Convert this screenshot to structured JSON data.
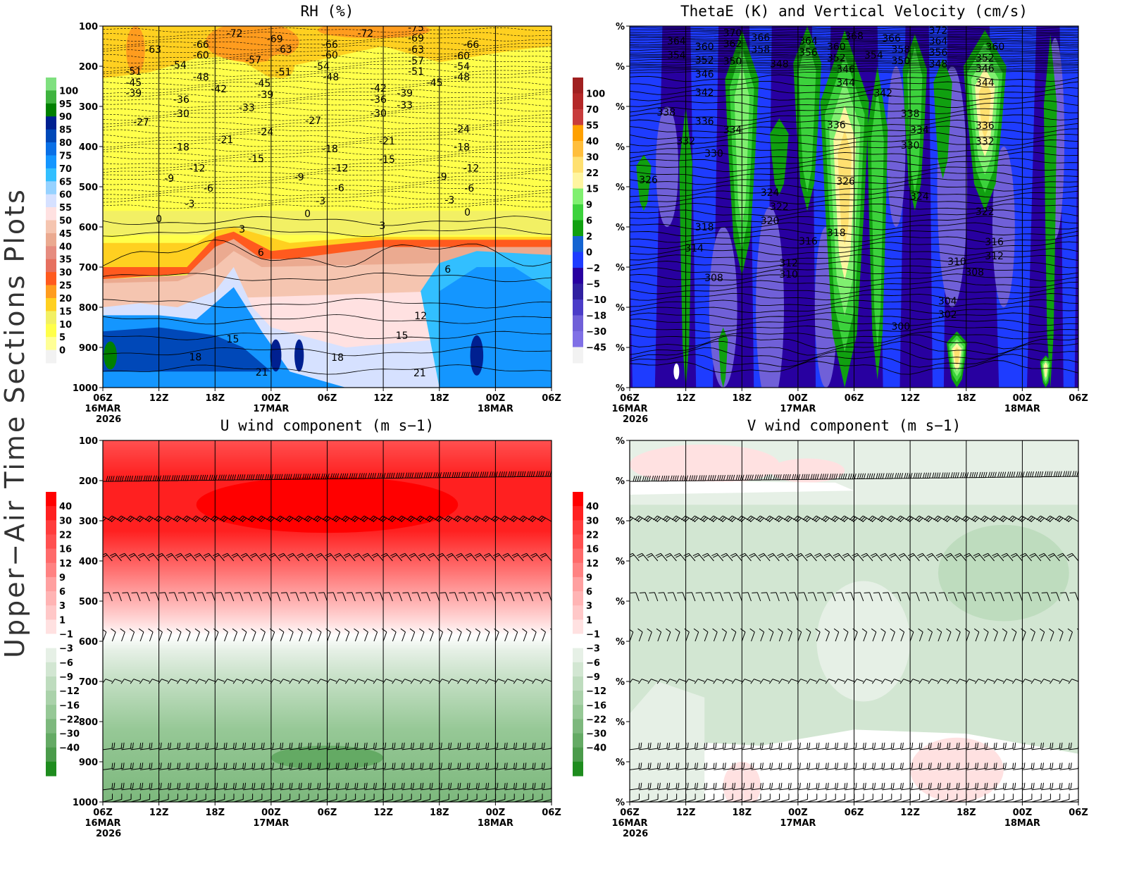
{
  "side_title": "Upper−Air Time Sections Plots",
  "x_axis": {
    "tick_labels": [
      "06Z",
      "12Z",
      "18Z",
      "00Z",
      "06Z",
      "12Z",
      "18Z",
      "00Z",
      "06Z"
    ],
    "date_labels": [
      {
        "tick": 0,
        "text": "16MAR"
      },
      {
        "tick": 3,
        "text": "17MAR"
      },
      {
        "tick": 7,
        "text": "18MAR"
      }
    ],
    "year_label": "2026"
  },
  "chart_data": [
    {
      "type": "heatmap",
      "title": "RH (%)",
      "ylim": [
        1000,
        100
      ],
      "x_range_hours": [
        0,
        48
      ],
      "ytick_labels": [
        "100",
        "200",
        "300",
        "400",
        "500",
        "600",
        "700",
        "800",
        "900",
        "1000"
      ],
      "colorbar": {
        "labels": [
          "100",
          "95",
          "90",
          "85",
          "80",
          "75",
          "70",
          "65",
          "60",
          "55",
          "50",
          "45",
          "40",
          "35",
          "30",
          "25",
          "20",
          "15",
          "10",
          "5",
          "0"
        ],
        "colors": [
          "#7fe07f",
          "#3fb33f",
          "#008000",
          "#002090",
          "#0048b8",
          "#0a70e6",
          "#1496ff",
          "#32bfff",
          "#96d2ff",
          "#d6e1ff",
          "#ffe1e1",
          "#f5c5b0",
          "#ebaa90",
          "#e68c7f",
          "#e6705f",
          "#ff5a1e",
          "#ff9c1e",
          "#ffd020",
          "#f2f064",
          "#ffff4a",
          "#ffff96",
          "#f2f2f2"
        ]
      },
      "contour_labels": [
        {
          "h": 14.1,
          "p": 119,
          "text": "-72"
        },
        {
          "h": 18.4,
          "p": 133,
          "text": "-69"
        },
        {
          "h": 28.1,
          "p": 119,
          "text": "-72"
        },
        {
          "h": 33.5,
          "p": 105,
          "text": "-75"
        },
        {
          "h": 33.5,
          "p": 132,
          "text": "-69"
        },
        {
          "h": 5.4,
          "p": 160,
          "text": "-63"
        },
        {
          "h": 10.5,
          "p": 147,
          "text": "-66"
        },
        {
          "h": 10.5,
          "p": 174,
          "text": "-60"
        },
        {
          "h": 19.4,
          "p": 160,
          "text": "-63"
        },
        {
          "h": 24.3,
          "p": 147,
          "text": "-66"
        },
        {
          "h": 24.3,
          "p": 174,
          "text": "-60"
        },
        {
          "h": 33.5,
          "p": 160,
          "text": "-63"
        },
        {
          "h": 39.4,
          "p": 147,
          "text": "-66"
        },
        {
          "h": 38.4,
          "p": 175,
          "text": "-60"
        },
        {
          "h": 16.1,
          "p": 186,
          "text": "-57"
        },
        {
          "h": 33.5,
          "p": 188,
          "text": "-57"
        },
        {
          "h": 8.1,
          "p": 198,
          "text": "-54"
        },
        {
          "h": 23.4,
          "p": 202,
          "text": "-54"
        },
        {
          "h": 38.4,
          "p": 202,
          "text": "-54"
        },
        {
          "h": 3.3,
          "p": 214,
          "text": "-51"
        },
        {
          "h": 19.3,
          "p": 216,
          "text": "-51"
        },
        {
          "h": 33.5,
          "p": 214,
          "text": "-51"
        },
        {
          "h": 10.5,
          "p": 228,
          "text": "-48"
        },
        {
          "h": 24.4,
          "p": 228,
          "text": "-48"
        },
        {
          "h": 38.4,
          "p": 228,
          "text": "-48"
        },
        {
          "h": 3.3,
          "p": 242,
          "text": "-45"
        },
        {
          "h": 17.1,
          "p": 244,
          "text": "-45"
        },
        {
          "h": 35.5,
          "p": 242,
          "text": "-45"
        },
        {
          "h": 12.4,
          "p": 258,
          "text": "-42"
        },
        {
          "h": 29.5,
          "p": 256,
          "text": "-42"
        },
        {
          "h": 3.3,
          "p": 268,
          "text": "-39"
        },
        {
          "h": 17.4,
          "p": 272,
          "text": "-39"
        },
        {
          "h": 32.3,
          "p": 268,
          "text": "-39"
        },
        {
          "h": 8.4,
          "p": 284,
          "text": "-36"
        },
        {
          "h": 29.5,
          "p": 284,
          "text": "-36"
        },
        {
          "h": 15.4,
          "p": 304,
          "text": "-33"
        },
        {
          "h": 32.3,
          "p": 298,
          "text": "-33"
        },
        {
          "h": 8.4,
          "p": 319,
          "text": "-30"
        },
        {
          "h": 29.5,
          "p": 318,
          "text": "-30"
        },
        {
          "h": 4.1,
          "p": 340,
          "text": "-27"
        },
        {
          "h": 22.5,
          "p": 337,
          "text": "-27"
        },
        {
          "h": 17.4,
          "p": 365,
          "text": "-24"
        },
        {
          "h": 38.4,
          "p": 358,
          "text": "-24"
        },
        {
          "h": 13.1,
          "p": 384,
          "text": "-21"
        },
        {
          "h": 30.4,
          "p": 388,
          "text": "-21"
        },
        {
          "h": 8.4,
          "p": 403,
          "text": "-18"
        },
        {
          "h": 24.3,
          "p": 407,
          "text": "-18"
        },
        {
          "h": 38.4,
          "p": 403,
          "text": "-18"
        },
        {
          "h": 16.4,
          "p": 432,
          "text": "-15"
        },
        {
          "h": 30.4,
          "p": 433,
          "text": "-15"
        },
        {
          "h": 10.1,
          "p": 455,
          "text": "-12"
        },
        {
          "h": 25.4,
          "p": 455,
          "text": "-12"
        },
        {
          "h": 39.4,
          "p": 455,
          "text": "-12"
        },
        {
          "h": 7.1,
          "p": 481,
          "text": "-9"
        },
        {
          "h": 21.0,
          "p": 477,
          "text": "-9"
        },
        {
          "h": 36.3,
          "p": 476,
          "text": "-9"
        },
        {
          "h": 11.3,
          "p": 505,
          "text": "-6"
        },
        {
          "h": 25.3,
          "p": 504,
          "text": "-6"
        },
        {
          "h": 39.2,
          "p": 505,
          "text": "-6"
        },
        {
          "h": 9.3,
          "p": 544,
          "text": "-3"
        },
        {
          "h": 23.3,
          "p": 537,
          "text": "-3"
        },
        {
          "h": 37.1,
          "p": 534,
          "text": "-3"
        },
        {
          "h": 6.0,
          "p": 582,
          "text": "0"
        },
        {
          "h": 21.9,
          "p": 568,
          "text": "0"
        },
        {
          "h": 39.0,
          "p": 565,
          "text": "0"
        },
        {
          "h": 14.9,
          "p": 607,
          "text": "3"
        },
        {
          "h": 29.9,
          "p": 598,
          "text": "3"
        },
        {
          "h": 16.9,
          "p": 665,
          "text": "6"
        },
        {
          "h": 36.9,
          "p": 707,
          "text": "6"
        },
        {
          "h": 34.0,
          "p": 823,
          "text": "12"
        },
        {
          "h": 13.9,
          "p": 881,
          "text": "15"
        },
        {
          "h": 32.0,
          "p": 872,
          "text": "15"
        },
        {
          "h": 9.9,
          "p": 925,
          "text": "18"
        },
        {
          "h": 25.1,
          "p": 926,
          "text": "18"
        },
        {
          "h": 17.0,
          "p": 963,
          "text": "21"
        },
        {
          "h": 33.9,
          "p": 965,
          "text": "21"
        }
      ]
    },
    {
      "type": "heatmap",
      "title": "ThetaE (K) and Vertical Velocity (cm/s)",
      "ylim": [
        1000,
        100
      ],
      "x_range_hours": [
        0,
        48
      ],
      "ytick_labels": [
        "%",
        "%",
        "%",
        "%",
        "%",
        "%",
        "%",
        "%",
        "%",
        "%"
      ],
      "colorbar": {
        "labels": [
          "100",
          "70",
          "55",
          "40",
          "30",
          "22",
          "15",
          "9",
          "6",
          "2",
          "0",
          "−2",
          "−5",
          "−10",
          "−18",
          "−30",
          "−45"
        ],
        "colors": [
          "#a02020",
          "#b42828",
          "#c83c3c",
          "#ffa000",
          "#ffbe3c",
          "#ffe070",
          "#fff5a0",
          "#80f070",
          "#3cd23c",
          "#10a010",
          "#1464d2",
          "#1e3cff",
          "#2800a0",
          "#3020a0",
          "#4b3cc8",
          "#7060d8",
          "#8070e6",
          "#f2f2f2"
        ]
      },
      "contour_labels": [
        {
          "h": 11.0,
          "p": 118,
          "text": "370"
        },
        {
          "h": 14.0,
          "p": 130,
          "text": "366"
        },
        {
          "h": 5.0,
          "p": 139,
          "text": "364"
        },
        {
          "h": 8.0,
          "p": 153,
          "text": "360"
        },
        {
          "h": 11.0,
          "p": 146,
          "text": "362"
        },
        {
          "h": 14.0,
          "p": 160,
          "text": "358"
        },
        {
          "h": 5.0,
          "p": 174,
          "text": "354"
        },
        {
          "h": 8.0,
          "p": 186,
          "text": "352"
        },
        {
          "h": 11.0,
          "p": 189,
          "text": "350"
        },
        {
          "h": 16.0,
          "p": 196,
          "text": "348"
        },
        {
          "h": 19.1,
          "p": 139,
          "text": "364"
        },
        {
          "h": 19.1,
          "p": 167,
          "text": "356"
        },
        {
          "h": 24.0,
          "p": 126,
          "text": "368"
        },
        {
          "h": 22.1,
          "p": 153,
          "text": "360"
        },
        {
          "h": 22.1,
          "p": 181,
          "text": "352"
        },
        {
          "h": 23.1,
          "p": 209,
          "text": "346"
        },
        {
          "h": 26.1,
          "p": 174,
          "text": "354"
        },
        {
          "h": 28.0,
          "p": 132,
          "text": "366"
        },
        {
          "h": 29.0,
          "p": 160,
          "text": "358"
        },
        {
          "h": 29.0,
          "p": 188,
          "text": "350"
        },
        {
          "h": 33.0,
          "p": 112,
          "text": "372"
        },
        {
          "h": 33.0,
          "p": 139,
          "text": "364"
        },
        {
          "h": 33.0,
          "p": 167,
          "text": "356"
        },
        {
          "h": 33.0,
          "p": 196,
          "text": "348"
        },
        {
          "h": 39.1,
          "p": 153,
          "text": "360"
        },
        {
          "h": 38.0,
          "p": 181,
          "text": "352"
        },
        {
          "h": 38.0,
          "p": 207,
          "text": "346"
        },
        {
          "h": 38.0,
          "p": 242,
          "text": "344"
        },
        {
          "h": 23.1,
          "p": 242,
          "text": "344"
        },
        {
          "h": 8.0,
          "p": 221,
          "text": "346"
        },
        {
          "h": 8.0,
          "p": 267,
          "text": "342"
        },
        {
          "h": 27.1,
          "p": 268,
          "text": "342"
        },
        {
          "h": 3.9,
          "p": 316,
          "text": "338"
        },
        {
          "h": 30.0,
          "p": 319,
          "text": "338"
        },
        {
          "h": 8.0,
          "p": 339,
          "text": "336"
        },
        {
          "h": 11.0,
          "p": 360,
          "text": "334"
        },
        {
          "h": 22.1,
          "p": 347,
          "text": "336"
        },
        {
          "h": 31.0,
          "p": 360,
          "text": "334"
        },
        {
          "h": 38.0,
          "p": 349,
          "text": "336"
        },
        {
          "h": 6.0,
          "p": 388,
          "text": "332"
        },
        {
          "h": 9.0,
          "p": 418,
          "text": "330"
        },
        {
          "h": 30.0,
          "p": 398,
          "text": "330"
        },
        {
          "h": 38.0,
          "p": 389,
          "text": "332"
        },
        {
          "h": 2.0,
          "p": 484,
          "text": "326"
        },
        {
          "h": 23.1,
          "p": 488,
          "text": "326"
        },
        {
          "h": 15.0,
          "p": 516,
          "text": "324"
        },
        {
          "h": 31.0,
          "p": 525,
          "text": "324"
        },
        {
          "h": 16.0,
          "p": 551,
          "text": "322"
        },
        {
          "h": 38.0,
          "p": 563,
          "text": "322"
        },
        {
          "h": 15.0,
          "p": 586,
          "text": "320"
        },
        {
          "h": 8.0,
          "p": 602,
          "text": "318"
        },
        {
          "h": 22.1,
          "p": 616,
          "text": "318"
        },
        {
          "h": 19.1,
          "p": 637,
          "text": "316"
        },
        {
          "h": 39.0,
          "p": 639,
          "text": "316"
        },
        {
          "h": 6.9,
          "p": 654,
          "text": "314"
        },
        {
          "h": 17.0,
          "p": 691,
          "text": "312"
        },
        {
          "h": 39.0,
          "p": 674,
          "text": "312"
        },
        {
          "h": 17.0,
          "p": 719,
          "text": "310"
        },
        {
          "h": 35.0,
          "p": 688,
          "text": "310"
        },
        {
          "h": 9.0,
          "p": 728,
          "text": "308"
        },
        {
          "h": 36.9,
          "p": 714,
          "text": "308"
        },
        {
          "h": 34.0,
          "p": 786,
          "text": "304"
        },
        {
          "h": 34.0,
          "p": 819,
          "text": "302"
        },
        {
          "h": 29.0,
          "p": 849,
          "text": "300"
        }
      ]
    },
    {
      "type": "heatmap",
      "title": "U wind component (m s−1)",
      "ylim": [
        1000,
        100
      ],
      "x_range_hours": [
        0,
        48
      ],
      "ytick_labels": [
        "100",
        "200",
        "300",
        "400",
        "500",
        "600",
        "700",
        "800",
        "900",
        "1000"
      ],
      "colorbar": {
        "labels": [
          "40",
          "30",
          "22",
          "16",
          "12",
          "9",
          "6",
          "3",
          "1",
          "−1",
          "−3",
          "−6",
          "−9",
          "−12",
          "−16",
          "−22",
          "−30",
          "−40"
        ],
        "colors": [
          "#ff0000",
          "#ff2020",
          "#ff3c3c",
          "#ff5050",
          "#ff6a6a",
          "#ff8282",
          "#ffa0a0",
          "#ffb4b4",
          "#ffc8c8",
          "#ffe1e1",
          "#ffffff",
          "#e6f0e6",
          "#d2e6d2",
          "#bedcbe",
          "#aad2aa",
          "#96c896",
          "#7db87d",
          "#64aa64",
          "#4b9b4b",
          "#1e8c1e"
        ]
      },
      "contour_labels": []
    },
    {
      "type": "heatmap",
      "title": "V wind component (m s−1)",
      "ylim": [
        1000,
        100
      ],
      "x_range_hours": [
        0,
        48
      ],
      "ytick_labels": [
        "%",
        "%",
        "%",
        "%",
        "%",
        "%",
        "%",
        "%",
        "%",
        "%"
      ],
      "colorbar": {
        "labels": [
          "40",
          "30",
          "22",
          "16",
          "12",
          "9",
          "6",
          "3",
          "1",
          "−1",
          "−3",
          "−6",
          "−9",
          "−12",
          "−16",
          "−22",
          "−30",
          "−40"
        ],
        "colors": [
          "#ff0000",
          "#ff2020",
          "#ff3c3c",
          "#ff5050",
          "#ff6a6a",
          "#ff8282",
          "#ffa0a0",
          "#ffb4b4",
          "#ffc8c8",
          "#ffe1e1",
          "#ffffff",
          "#e6f0e6",
          "#d2e6d2",
          "#bedcbe",
          "#aad2aa",
          "#96c896",
          "#7db87d",
          "#64aa64",
          "#4b9b4b",
          "#1e8c1e"
        ]
      },
      "contour_labels": []
    }
  ]
}
